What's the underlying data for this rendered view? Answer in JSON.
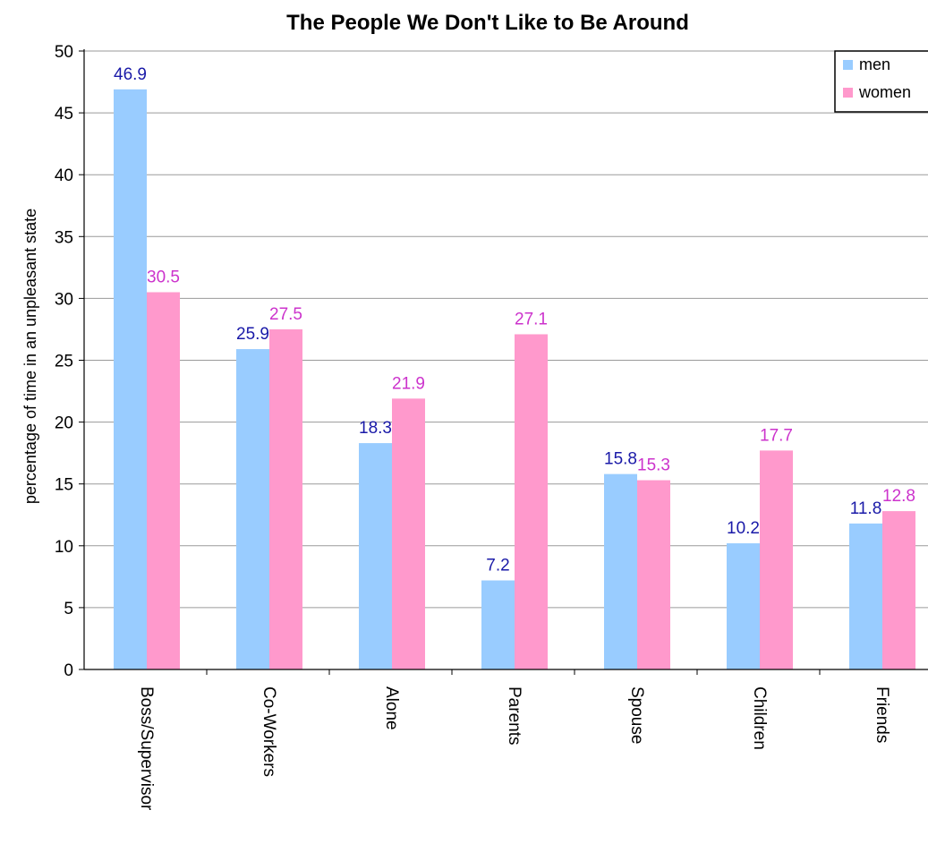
{
  "chart_data": {
    "type": "bar",
    "title": "The People We Don't Like to Be Around",
    "xlabel": "",
    "ylabel": "percentage of time in an unpleasant state",
    "ylim": [
      0,
      50
    ],
    "yticks": [
      0,
      5,
      10,
      15,
      20,
      25,
      30,
      35,
      40,
      45,
      50
    ],
    "grid": true,
    "legend_position": "top-right",
    "categories": [
      "Boss/Supervisor",
      "Co-Workers",
      "Alone",
      "Parents",
      "Spouse",
      "Children",
      "Friends"
    ],
    "series": [
      {
        "name": "men",
        "color": "#99ccff",
        "label_color": "#1a1aa8",
        "values": [
          46.9,
          25.9,
          18.3,
          7.2,
          15.8,
          10.2,
          11.8
        ]
      },
      {
        "name": "women",
        "color": "#ff99cc",
        "label_color": "#cc33cc",
        "values": [
          30.5,
          27.5,
          21.9,
          27.1,
          15.3,
          17.7,
          12.8
        ]
      }
    ]
  }
}
